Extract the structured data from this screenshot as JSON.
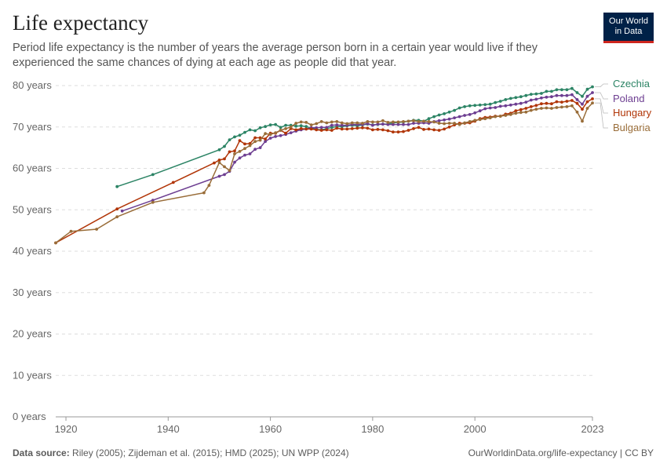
{
  "header": {
    "title": "Life expectancy",
    "subtitle": "Period life expectancy is the number of years the average person born in a certain year would live if they experienced the same chances of dying at each age as people did that year.",
    "logo_text": "Our World in Data"
  },
  "footer": {
    "source_label": "Data source:",
    "source_text": "Riley (2005); Zijdeman et al. (2015); HMD (2025); UN WPP (2024)",
    "credit": "OurWorldinData.org/life-expectancy | CC BY"
  },
  "colors": {
    "Czechia": "#2c8465",
    "Poland": "#6d3e91",
    "Hungary": "#b13507",
    "Bulgaria": "#996d39",
    "grid": "#dddddd",
    "axis_text": "#666666"
  },
  "chart_data": {
    "type": "line",
    "xlim": [
      1918,
      2023
    ],
    "ylim": [
      0,
      80
    ],
    "x_ticks": [
      "1920",
      "1940",
      "1960",
      "1980",
      "2000",
      "2023"
    ],
    "y_ticks": [
      "0 years",
      "10 years",
      "20 years",
      "30 years",
      "40 years",
      "50 years",
      "60 years",
      "70 years",
      "80 years"
    ],
    "grid": true,
    "legend_placement": "right",
    "series": [
      {
        "name": "Czechia",
        "x": [
          1930,
          1937,
          1950,
          1951,
          1952,
          1953,
          1954,
          1955,
          1956,
          1957,
          1958,
          1959,
          1960,
          1961,
          1962,
          1963,
          1964,
          1965,
          1966,
          1967,
          1968,
          1969,
          1970,
          1971,
          1972,
          1973,
          1974,
          1975,
          1976,
          1977,
          1978,
          1979,
          1980,
          1981,
          1982,
          1983,
          1984,
          1985,
          1986,
          1987,
          1988,
          1989,
          1990,
          1991,
          1992,
          1993,
          1994,
          1995,
          1996,
          1997,
          1998,
          1999,
          2000,
          2001,
          2002,
          2003,
          2004,
          2005,
          2006,
          2007,
          2008,
          2009,
          2010,
          2011,
          2012,
          2013,
          2014,
          2015,
          2016,
          2017,
          2018,
          2019,
          2020,
          2021,
          2022,
          2023
        ],
        "values": [
          55.6,
          58.5,
          64.5,
          65.3,
          66.9,
          67.6,
          68.0,
          68.7,
          69.3,
          69.1,
          69.8,
          70.1,
          70.5,
          70.6,
          69.9,
          70.4,
          70.4,
          70.2,
          70.3,
          70.1,
          69.7,
          69.4,
          69.3,
          69.6,
          69.9,
          70.1,
          70.1,
          70.3,
          70.4,
          70.3,
          70.5,
          70.7,
          70.5,
          70.6,
          70.7,
          70.7,
          71.0,
          71.1,
          71.2,
          71.4,
          71.6,
          71.6,
          71.4,
          72.0,
          72.5,
          72.9,
          73.2,
          73.6,
          74.0,
          74.6,
          74.9,
          75.1,
          75.2,
          75.3,
          75.4,
          75.5,
          75.9,
          76.2,
          76.6,
          76.9,
          77.1,
          77.3,
          77.6,
          77.9,
          78.0,
          78.1,
          78.6,
          78.6,
          79.0,
          79.0,
          79.0,
          79.3,
          78.3,
          77.4,
          79.1,
          79.7
        ]
      },
      {
        "name": "Poland",
        "x": [
          1931,
          1937,
          1950,
          1951,
          1952,
          1953,
          1954,
          1955,
          1956,
          1957,
          1958,
          1959,
          1960,
          1961,
          1962,
          1963,
          1964,
          1965,
          1966,
          1967,
          1968,
          1969,
          1970,
          1971,
          1972,
          1973,
          1974,
          1975,
          1976,
          1977,
          1978,
          1979,
          1980,
          1981,
          1982,
          1983,
          1984,
          1985,
          1986,
          1987,
          1988,
          1989,
          1990,
          1991,
          1992,
          1993,
          1994,
          1995,
          1996,
          1997,
          1998,
          1999,
          2000,
          2001,
          2002,
          2003,
          2004,
          2005,
          2006,
          2007,
          2008,
          2009,
          2010,
          2011,
          2012,
          2013,
          2014,
          2015,
          2016,
          2017,
          2018,
          2019,
          2020,
          2021,
          2022,
          2023
        ],
        "values": [
          49.7,
          52.3,
          58.1,
          58.5,
          59.3,
          61.5,
          62.5,
          63.2,
          63.5,
          64.6,
          65.0,
          66.5,
          67.3,
          67.7,
          67.9,
          68.2,
          68.6,
          69.0,
          69.3,
          69.5,
          69.8,
          69.8,
          69.9,
          69.9,
          70.4,
          70.5,
          70.4,
          70.4,
          70.6,
          70.6,
          70.6,
          70.8,
          70.4,
          70.7,
          70.7,
          70.6,
          70.6,
          70.6,
          70.6,
          70.6,
          70.9,
          70.9,
          71.0,
          70.9,
          71.3,
          71.5,
          71.7,
          71.9,
          72.2,
          72.5,
          72.8,
          73.0,
          73.4,
          73.9,
          74.4,
          74.6,
          74.7,
          75.0,
          75.1,
          75.3,
          75.5,
          75.7,
          76.0,
          76.5,
          76.7,
          77.0,
          77.2,
          77.3,
          77.6,
          77.6,
          77.6,
          77.8,
          76.6,
          75.5,
          77.4,
          78.3
        ]
      },
      {
        "name": "Hungary",
        "x": [
          1918,
          1930,
          1941,
          1949,
          1950,
          1951,
          1952,
          1953,
          1954,
          1955,
          1956,
          1957,
          1958,
          1959,
          1960,
          1961,
          1962,
          1963,
          1964,
          1965,
          1966,
          1967,
          1968,
          1969,
          1970,
          1971,
          1972,
          1973,
          1974,
          1975,
          1976,
          1977,
          1978,
          1979,
          1980,
          1981,
          1982,
          1983,
          1984,
          1985,
          1986,
          1987,
          1988,
          1989,
          1990,
          1991,
          1992,
          1993,
          1994,
          1995,
          1996,
          1997,
          1998,
          1999,
          2000,
          2001,
          2002,
          2003,
          2004,
          2005,
          2006,
          2007,
          2008,
          2009,
          2010,
          2011,
          2012,
          2013,
          2014,
          2015,
          2016,
          2017,
          2018,
          2019,
          2020,
          2021,
          2022,
          2023
        ],
        "values": [
          42.0,
          50.2,
          56.6,
          61.3,
          62.0,
          62.3,
          64.0,
          64.2,
          66.7,
          65.9,
          66.0,
          67.4,
          67.4,
          67.1,
          68.5,
          68.5,
          69.2,
          68.5,
          69.6,
          69.3,
          69.6,
          69.5,
          69.5,
          69.3,
          69.2,
          69.3,
          69.2,
          69.7,
          69.5,
          69.5,
          69.6,
          69.7,
          69.8,
          69.7,
          69.3,
          69.4,
          69.3,
          69.1,
          68.8,
          68.8,
          68.9,
          69.2,
          69.6,
          69.9,
          69.4,
          69.5,
          69.3,
          69.2,
          69.5,
          70.0,
          70.5,
          70.9,
          70.9,
          71.0,
          71.4,
          72.0,
          72.3,
          72.4,
          72.6,
          72.6,
          73.1,
          73.3,
          73.9,
          74.2,
          74.5,
          74.9,
          75.2,
          75.6,
          75.7,
          75.6,
          76.1,
          76.0,
          76.2,
          76.4,
          75.7,
          74.3,
          76.1,
          76.8
        ]
      },
      {
        "name": "Bulgaria",
        "x": [
          1918,
          1921,
          1926,
          1930,
          1937,
          1947,
          1948,
          1950,
          1951,
          1952,
          1953,
          1954,
          1955,
          1956,
          1957,
          1958,
          1959,
          1960,
          1961,
          1962,
          1963,
          1964,
          1965,
          1966,
          1967,
          1968,
          1969,
          1970,
          1971,
          1972,
          1973,
          1974,
          1975,
          1976,
          1977,
          1978,
          1979,
          1980,
          1981,
          1982,
          1983,
          1984,
          1985,
          1986,
          1987,
          1988,
          1989,
          1990,
          1991,
          1992,
          1993,
          1994,
          1995,
          1996,
          1997,
          1998,
          1999,
          2000,
          2001,
          2002,
          2003,
          2004,
          2005,
          2006,
          2007,
          2008,
          2009,
          2010,
          2011,
          2012,
          2013,
          2014,
          2015,
          2016,
          2017,
          2018,
          2019,
          2020,
          2021,
          2022,
          2023
        ],
        "values": [
          42.0,
          44.8,
          45.3,
          48.3,
          51.8,
          54.1,
          55.9,
          61.4,
          60.4,
          59.5,
          63.5,
          64.1,
          64.8,
          65.5,
          66.5,
          66.8,
          68.4,
          68.2,
          68.6,
          69.2,
          69.6,
          70.0,
          70.9,
          71.2,
          71.1,
          70.5,
          70.8,
          71.3,
          71.0,
          71.2,
          71.3,
          71.0,
          70.8,
          71.0,
          71.0,
          70.9,
          71.3,
          71.2,
          71.2,
          71.5,
          71.1,
          71.2,
          71.2,
          71.3,
          71.4,
          71.5,
          71.3,
          71.4,
          71.3,
          71.2,
          70.9,
          70.8,
          70.9,
          70.9,
          70.6,
          71.0,
          71.3,
          71.6,
          71.8,
          72.0,
          72.2,
          72.5,
          72.6,
          72.8,
          73.0,
          73.3,
          73.5,
          73.6,
          74.0,
          74.3,
          74.5,
          74.6,
          74.5,
          74.7,
          74.8,
          74.9,
          75.1,
          73.6,
          71.4,
          74.5,
          75.8
        ]
      }
    ]
  }
}
